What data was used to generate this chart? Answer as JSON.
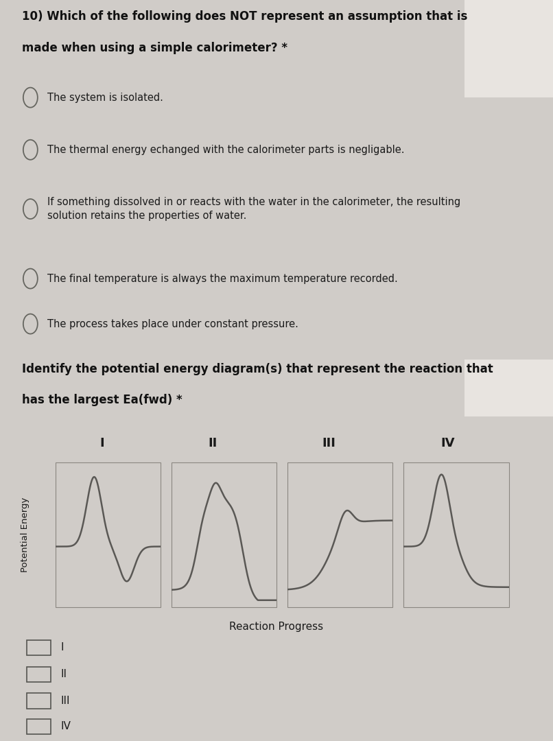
{
  "bg_color": "#d0ccc8",
  "panel1_bg": "#cac6c2",
  "panel2_bg": "#cac6c2",
  "sep_color": "#b8b4b0",
  "question1_line1": "10) Which of the following does NOT represent an assumption that is",
  "question1_line2": "made when using a simple calorimeter? *",
  "options_q1": [
    "The system is isolated.",
    "The thermal energy echanged with the calorimeter parts is negligable.",
    "If something dissolved in or reacts with the water in the calorimeter, the resulting\nsolution retains the properties of water.",
    "The final temperature is always the maximum temperature recorded.",
    "The process takes place under constant pressure."
  ],
  "question2_line1": "Identify the potential energy diagram(s) that represent the reaction that",
  "question2_line2": "has the largest Ea(fwd) *",
  "diagram_labels": [
    "I",
    "II",
    "III",
    "IV"
  ],
  "reaction_progress_label": "Reaction Progress",
  "potential_energy_label": "Potential Energy",
  "checkbox_labels": [
    "I",
    "II",
    "III",
    "IV"
  ],
  "curve_color": "#5a5855",
  "diagram_bg": "#bebab4",
  "text_color": "#1a1a1a",
  "title_color": "#111111",
  "white_rect_color": "#e8e4e0"
}
